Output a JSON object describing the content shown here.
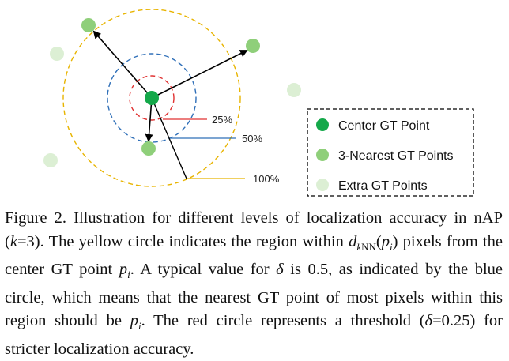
{
  "figure": {
    "leaders": [
      {
        "label": "25%",
        "color": "#e03030"
      },
      {
        "label": "50%",
        "color": "#2f6fb8"
      },
      {
        "label": "100%",
        "color": "#e8b400"
      }
    ],
    "legend": [
      {
        "label": "Center GT Point",
        "color": "#14a84a"
      },
      {
        "label": "3-Nearest GT Points",
        "color": "#8fcf7a"
      },
      {
        "label": "Extra GT Points",
        "color": "#dcefd4"
      }
    ],
    "colors": {
      "center": "#14a84a",
      "nearest": "#8fcf7a",
      "extra": "#dcefd4",
      "red_circle": "#e03030",
      "blue_circle": "#2f6fb8",
      "yellow_circle": "#e8b400"
    }
  },
  "caption": {
    "label": "Figure 2.",
    "p1": " Illustration for different levels of localization accuracy in nAP (",
    "k": "k",
    "p2": "=3). The yellow circle indicates the region within ",
    "d": "d",
    "dsub": "k",
    "dsub2": "NN",
    "p3": "(",
    "pi": "p",
    "pisub": "i",
    "p4": ") pixels from the center GT point ",
    "p5": ". A typical value for ",
    "delta": "δ",
    "p6": " is 0.5, as indicated by the blue circle, which means that the nearest GT point of most pixels within this region should be ",
    "p7": ". The red circle represents a threshold (",
    "p8": "=0.25) for stricter localization accuracy."
  }
}
